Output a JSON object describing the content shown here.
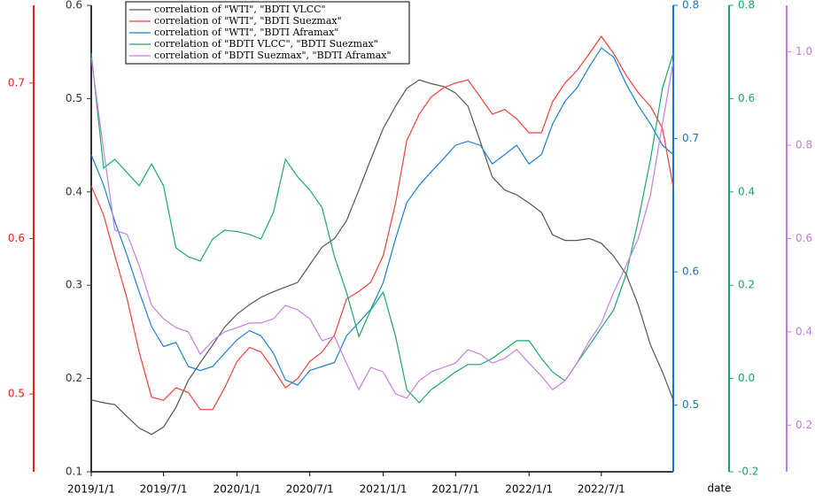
{
  "chart_data": {
    "type": "line",
    "x_label": "date",
    "x": [
      "2019/1/1",
      "2019/2/1",
      "2019/3/1",
      "2019/4/1",
      "2019/5/1",
      "2019/6/1",
      "2019/7/1",
      "2019/8/1",
      "2019/9/1",
      "2019/10/1",
      "2019/11/1",
      "2019/12/1",
      "2020/1/1",
      "2020/2/1",
      "2020/3/1",
      "2020/4/1",
      "2020/5/1",
      "2020/6/1",
      "2020/7/1",
      "2020/8/1",
      "2020/9/1",
      "2020/10/1",
      "2020/11/1",
      "2020/12/1",
      "2021/1/1",
      "2021/2/1",
      "2021/3/1",
      "2021/4/1",
      "2021/5/1",
      "2021/6/1",
      "2021/7/1",
      "2021/8/1",
      "2021/9/1",
      "2021/10/1",
      "2021/11/1",
      "2021/12/1",
      "2022/1/1",
      "2022/2/1",
      "2022/3/1",
      "2022/4/1",
      "2022/5/1",
      "2022/6/1",
      "2022/7/1",
      "2022/8/1",
      "2022/9/1",
      "2022/10/1",
      "2022/11/1",
      "2022/12/1",
      "2022/12/28"
    ],
    "xlim": [
      "2019/1/1",
      "2022/12/28"
    ],
    "xticks": [
      "2019/1/1",
      "2019/7/1",
      "2020/1/1",
      "2020/7/1",
      "2021/1/1",
      "2021/7/1",
      "2022/1/1",
      "2022/7/1"
    ],
    "axes": {
      "y": {
        "color": "#333333",
        "lim": [
          0.1,
          0.6
        ],
        "ticks": [
          0.1,
          0.2,
          0.3,
          0.4,
          0.5,
          0.6
        ]
      },
      "y2": {
        "color": "#e8211d",
        "lim": [
          0.45,
          0.75
        ],
        "ticks": [
          0.5,
          0.6,
          0.7
        ]
      },
      "y3": {
        "color": "#1874cd",
        "lim": [
          0.45,
          0.8
        ],
        "ticks": [
          0.5,
          0.6,
          0.7,
          0.8
        ]
      },
      "y4": {
        "color": "#12a85f",
        "lim": [
          -0.2,
          0.8
        ],
        "ticks": [
          -0.2,
          {
            "value": 0,
            "label": "0.0"
          },
          0.2,
          0.4,
          0.6,
          0.8
        ]
      },
      "y5": {
        "color": "#c27be0",
        "lim": [
          0.1,
          1.1
        ],
        "ticks": [
          0.2,
          0.4,
          0.6,
          0.8,
          {
            "value": 1,
            "label": "1.0"
          }
        ]
      }
    },
    "series": [
      {
        "name": "correlation of \"WTI\", \"BDTI VLCC\"",
        "color": "#555555",
        "axis": "y",
        "values": [
          0.177,
          0.174,
          0.172,
          0.159,
          0.147,
          0.14,
          0.148,
          0.169,
          0.198,
          0.217,
          0.236,
          0.255,
          0.269,
          0.279,
          0.287,
          0.293,
          0.298,
          0.303,
          0.322,
          0.341,
          0.35,
          0.369,
          0.402,
          0.435,
          0.468,
          0.492,
          0.511,
          0.52,
          0.516,
          0.513,
          0.506,
          0.492,
          0.454,
          0.416,
          0.402,
          0.397,
          0.388,
          0.378,
          0.354,
          0.348,
          0.348,
          0.35,
          0.345,
          0.331,
          0.312,
          0.279,
          0.236,
          0.207,
          0.177
        ]
      },
      {
        "name": "correlation of \"WTI\", \"BDTI Suezmax\"",
        "color": "#f0413a",
        "axis": "y2",
        "values": [
          0.634,
          0.615,
          0.589,
          0.561,
          0.527,
          0.498,
          0.496,
          0.504,
          0.501,
          0.49,
          0.49,
          0.504,
          0.521,
          0.53,
          0.527,
          0.516,
          0.504,
          0.51,
          0.521,
          0.527,
          0.538,
          0.561,
          0.566,
          0.572,
          0.589,
          0.623,
          0.663,
          0.68,
          0.691,
          0.697,
          0.7,
          0.702,
          0.691,
          0.68,
          0.683,
          0.677,
          0.668,
          0.668,
          0.688,
          0.7,
          0.708,
          0.719,
          0.73,
          0.719,
          0.705,
          0.694,
          0.685,
          0.671,
          0.633
        ]
      },
      {
        "name": "correlation of \"WTI\", \"BDTI Aframax\"",
        "color": "#1a7fd6",
        "axis": "y3",
        "values": [
          0.688,
          0.665,
          0.638,
          0.612,
          0.585,
          0.559,
          0.544,
          0.547,
          0.529,
          0.526,
          0.529,
          0.539,
          0.549,
          0.556,
          0.552,
          0.539,
          0.519,
          0.515,
          0.526,
          0.529,
          0.532,
          0.552,
          0.562,
          0.572,
          0.592,
          0.625,
          0.652,
          0.665,
          0.675,
          0.685,
          0.695,
          0.698,
          0.695,
          0.681,
          0.688,
          0.695,
          0.681,
          0.688,
          0.711,
          0.728,
          0.738,
          0.754,
          0.768,
          0.761,
          0.741,
          0.725,
          0.711,
          0.695,
          0.688
        ]
      },
      {
        "name": "correlation of \"BDTI VLCC\", \"BDTI Suezmax\"",
        "color": "#1aa86a",
        "axis": "y4",
        "values": [
          0.698,
          0.451,
          0.47,
          0.441,
          0.413,
          0.46,
          0.413,
          0.28,
          0.261,
          0.252,
          0.299,
          0.318,
          0.315,
          0.309,
          0.299,
          0.356,
          0.47,
          0.432,
          0.404,
          0.366,
          0.261,
          0.185,
          0.09,
          0.147,
          0.185,
          0.09,
          -0.024,
          -0.052,
          -0.024,
          -0.005,
          0.014,
          0.03,
          0.03,
          0.043,
          0.062,
          0.081,
          0.081,
          0.043,
          0.014,
          -0.005,
          0.033,
          0.071,
          0.109,
          0.147,
          0.223,
          0.337,
          0.47,
          0.622,
          0.698
        ]
      },
      {
        "name": "correlation of \"BDTI Suezmax\", \"BDTI Aframax\"",
        "color": "#c77ee0",
        "axis": "y5",
        "values": [
          0.988,
          0.789,
          0.618,
          0.609,
          0.542,
          0.457,
          0.428,
          0.409,
          0.4,
          0.352,
          0.381,
          0.4,
          0.409,
          0.419,
          0.419,
          0.428,
          0.457,
          0.447,
          0.428,
          0.381,
          0.39,
          0.333,
          0.276,
          0.324,
          0.314,
          0.267,
          0.258,
          0.295,
          0.314,
          0.324,
          0.333,
          0.362,
          0.352,
          0.333,
          0.343,
          0.362,
          0.333,
          0.305,
          0.276,
          0.295,
          0.333,
          0.381,
          0.419,
          0.485,
          0.542,
          0.599,
          0.694,
          0.846,
          0.979
        ]
      }
    ]
  }
}
